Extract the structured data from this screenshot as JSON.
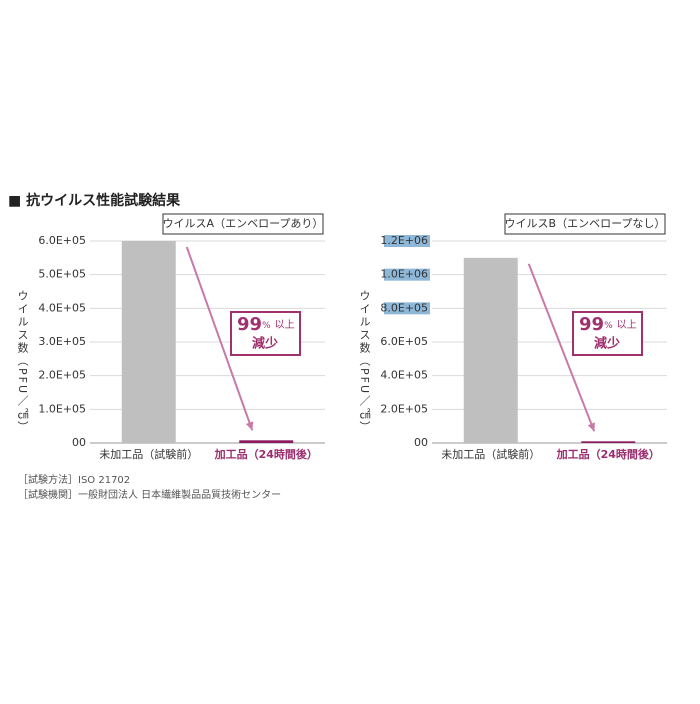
{
  "heading": "■ 抗ウイルス性能試験結果",
  "notes": [
    "［試験方法］ISO 21702",
    "［試験機関］一般財団法人 日本繊維製品品質技術センター"
  ],
  "chart_data": [
    {
      "type": "bar",
      "title": "ウイルスA（エンベロープあり）",
      "y_label": "ウイルス数（PFU／㎠）",
      "categories": [
        "未加工品（試験前）",
        "加工品（24時間後）"
      ],
      "values": [
        600000,
        8000
      ],
      "colors": [
        "#bfbfbf",
        "#8b1a5f"
      ],
      "label_colors": [
        "#333333",
        "#9b2d6e"
      ],
      "ylim": [
        0,
        600000
      ],
      "yticks": [
        {
          "value": 0,
          "label": "00"
        },
        {
          "value": 100000,
          "label": "1.0E+05"
        },
        {
          "value": 200000,
          "label": "2.0E+05"
        },
        {
          "value": 300000,
          "label": "3.0E+05"
        },
        {
          "value": 400000,
          "label": "4.0E+05"
        },
        {
          "value": 500000,
          "label": "5.0E+05"
        },
        {
          "value": 600000,
          "label": "6.0E+05"
        }
      ],
      "grid": true,
      "annotation": {
        "number": "99",
        "unit": "%",
        "suffix": "以上",
        "line2": "減少",
        "color": "#a0306e",
        "arrow_color": "#c879a8"
      }
    },
    {
      "type": "bar",
      "title": "ウイルスB（エンベロープなし）",
      "y_label": "ウイルス数（PFU／㎠）",
      "categories": [
        "未加工品（試験前）",
        "加工品（24時間後）"
      ],
      "values": [
        1100000,
        10000
      ],
      "colors": [
        "#bfbfbf",
        "#8b1a5f"
      ],
      "label_colors": [
        "#333333",
        "#9b2d6e"
      ],
      "ylim": [
        0,
        1200000
      ],
      "yticks": [
        {
          "value": 0,
          "label": "00"
        },
        {
          "value": 200000,
          "label": "2.0E+05"
        },
        {
          "value": 400000,
          "label": "4.0E+05"
        },
        {
          "value": 600000,
          "label": "6.0E+05"
        },
        {
          "value": 800000,
          "label": "8.0E+05",
          "highlight": true
        },
        {
          "value": 1000000,
          "label": "1.0E+06",
          "highlight": true
        },
        {
          "value": 1200000,
          "label": "1.2E+06",
          "highlight": true
        }
      ],
      "grid": true,
      "annotation": {
        "number": "99",
        "unit": "%",
        "suffix": "以上",
        "line2": "減少",
        "color": "#a0306e",
        "arrow_color": "#c879a8"
      }
    }
  ]
}
